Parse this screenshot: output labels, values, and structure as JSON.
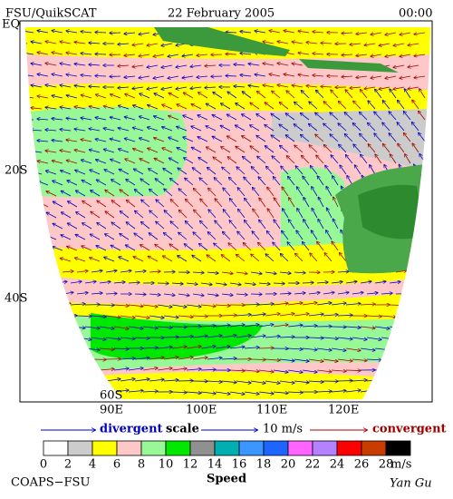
{
  "header": {
    "left": "FSU/QuikSCAT",
    "center": "22 February 2005",
    "right": "00:00"
  },
  "map": {
    "lat_labels": [
      "EQ",
      "20S",
      "40S",
      "60S"
    ],
    "lon_labels": [
      "90E",
      "100E",
      "110E",
      "120E"
    ]
  },
  "legend": {
    "divergent": "divergent",
    "scale": "scale",
    "scale_value": "10 m/s",
    "convergent": "convergent"
  },
  "colorbar": {
    "ticks": [
      0,
      2,
      4,
      6,
      8,
      10,
      12,
      14,
      16,
      18,
      20,
      22,
      24,
      26,
      28
    ],
    "colors": [
      "#ffffff",
      "#cccccc",
      "#ffff00",
      "#ffc8c8",
      "#98f898",
      "#00e800",
      "#909090",
      "#00b0b0",
      "#3c96ff",
      "#1e64ff",
      "#ff64ff",
      "#b482ff",
      "#ff0000",
      "#c83c00",
      "#000000"
    ],
    "unit": "m/s",
    "label": "Speed"
  },
  "footer": {
    "left": "COAPS−FSU",
    "right": "Yan Gu"
  }
}
